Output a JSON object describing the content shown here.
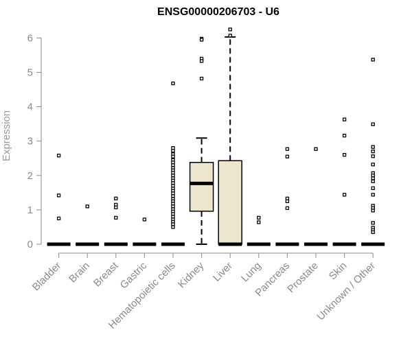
{
  "chart_data": {
    "type": "boxplot",
    "title": "ENSG00000206703 - U6",
    "xlabel": "",
    "ylabel": "Expression",
    "ylim": [
      0,
      6.25
    ],
    "yticks": [
      0,
      1,
      2,
      3,
      4,
      5,
      6
    ],
    "box_fill": "#eee6cc",
    "categories": [
      "Bladder",
      "Brain",
      "Breast",
      "Gastric",
      "Hematopoietic cells",
      "Kidney",
      "Liver",
      "Lung",
      "Pancreas",
      "Prostate",
      "Skin",
      "Unknown / Other"
    ],
    "boxes": [
      {
        "category": "Bladder",
        "q1": 0,
        "median": 0,
        "q3": 0,
        "whisker_low": 0,
        "whisker_high": 0,
        "outliers": [
          2.58,
          1.42,
          0.75
        ]
      },
      {
        "category": "Brain",
        "q1": 0,
        "median": 0,
        "q3": 0,
        "whisker_low": 0,
        "whisker_high": 0,
        "outliers": [
          1.1
        ]
      },
      {
        "category": "Breast",
        "q1": 0,
        "median": 0,
        "q3": 0,
        "whisker_low": 0,
        "whisker_high": 0,
        "outliers": [
          1.33,
          1.15,
          1.07,
          0.77
        ]
      },
      {
        "category": "Gastric",
        "q1": 0,
        "median": 0,
        "q3": 0,
        "whisker_low": 0,
        "whisker_high": 0,
        "outliers": [
          0.72
        ]
      },
      {
        "category": "Hematopoietic cells",
        "q1": 0,
        "median": 0,
        "q3": 0,
        "whisker_low": 0,
        "whisker_high": 0,
        "outliers": [
          4.68,
          2.8,
          2.72,
          2.62,
          2.55,
          2.45,
          2.38,
          2.3,
          2.22,
          2.15,
          2.08,
          2.0,
          1.92,
          1.85,
          1.78,
          1.7,
          1.62,
          1.55,
          1.48,
          1.4,
          1.32,
          1.25,
          1.18,
          1.1,
          1.02,
          0.95,
          0.88,
          0.8,
          0.72,
          0.65,
          0.58,
          0.5
        ]
      },
      {
        "category": "Kidney",
        "q1": 0.96,
        "median": 1.77,
        "q3": 2.38,
        "whisker_low": 0,
        "whisker_high": 3.09,
        "outliers": [
          5.98,
          5.95,
          5.4,
          5.33,
          4.82
        ]
      },
      {
        "category": "Liver",
        "q1": 0,
        "median": 0,
        "q3": 2.43,
        "whisker_low": 0,
        "whisker_high": 6.03,
        "outliers": [
          6.25,
          6.07
        ]
      },
      {
        "category": "Lung",
        "q1": 0,
        "median": 0,
        "q3": 0,
        "whisker_low": 0,
        "whisker_high": 0,
        "outliers": [
          0.77,
          0.64
        ]
      },
      {
        "category": "Pancreas",
        "q1": 0,
        "median": 0,
        "q3": 0,
        "whisker_low": 0,
        "whisker_high": 0,
        "outliers": [
          2.77,
          2.55,
          1.33,
          1.25,
          1.05
        ]
      },
      {
        "category": "Prostate",
        "q1": 0,
        "median": 0,
        "q3": 0,
        "whisker_low": 0,
        "whisker_high": 0,
        "outliers": [
          2.77
        ]
      },
      {
        "category": "Skin",
        "q1": 0,
        "median": 0,
        "q3": 0,
        "whisker_low": 0,
        "whisker_high": 0,
        "outliers": [
          3.63,
          3.16,
          2.6,
          1.44
        ]
      },
      {
        "category": "Unknown / Other",
        "q1": 0,
        "median": 0,
        "q3": 0,
        "whisker_low": 0,
        "whisker_high": 0,
        "outliers": [
          5.37,
          3.49,
          2.83,
          2.7,
          2.56,
          2.32,
          2.07,
          2.0,
          1.92,
          1.83,
          1.63,
          1.44,
          1.12,
          1.05,
          0.98,
          0.62,
          0.48,
          0.41,
          0.35
        ]
      }
    ]
  }
}
